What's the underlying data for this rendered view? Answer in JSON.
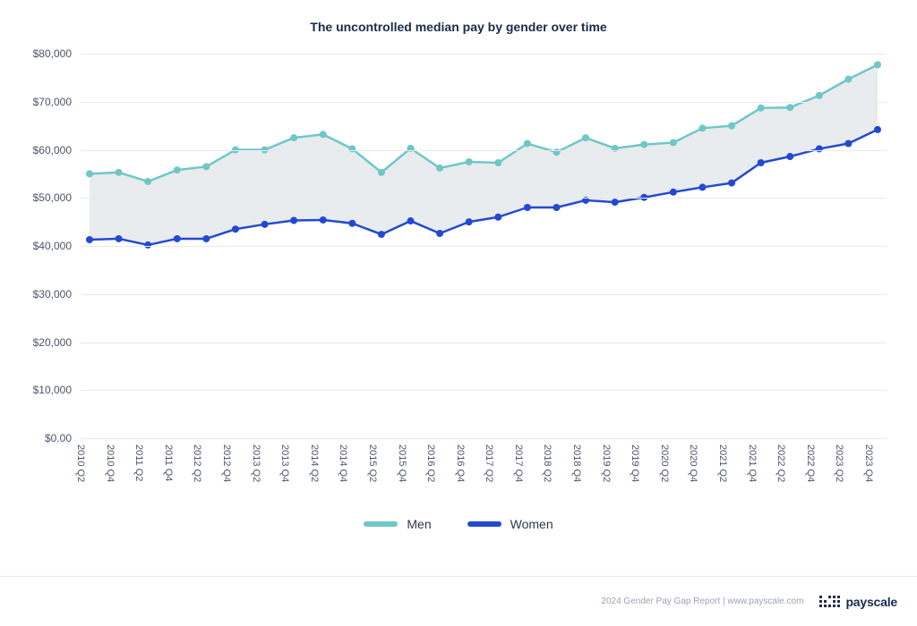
{
  "chart": {
    "type": "line-area",
    "title": "The uncontrolled median pay by gender over time",
    "title_fontsize": 14,
    "title_color": "#1a2b4a",
    "background_color": "#ffffff",
    "grid_color": "#e7e9ec",
    "area_fill": "#e8ecef",
    "area_opacity": 1,
    "ylim": [
      0,
      80000
    ],
    "ytick_step": 10000,
    "y_ticks": [
      {
        "v": 0,
        "label": "$0.00"
      },
      {
        "v": 10000,
        "label": "$10,000"
      },
      {
        "v": 20000,
        "label": "$20,000"
      },
      {
        "v": 30000,
        "label": "$30,000"
      },
      {
        "v": 40000,
        "label": "$40,000"
      },
      {
        "v": 50000,
        "label": "$50,000"
      },
      {
        "v": 60000,
        "label": "$60,000"
      },
      {
        "v": 70000,
        "label": "$70,000"
      },
      {
        "v": 80000,
        "label": "$80,000"
      }
    ],
    "y_label_color": "#4a5568",
    "y_label_fontsize": 12,
    "x_labels": [
      "2010 Q2",
      "2010 Q4",
      "2011 Q2",
      "2011 Q4",
      "2012 Q2",
      "2012 Q4",
      "2013 Q2",
      "2013 Q4",
      "2014 Q2",
      "2014 Q4",
      "2015 Q2",
      "2015 Q4",
      "2016 Q2",
      "2016 Q4",
      "2017 Q2",
      "2017 Q4",
      "2018 Q2",
      "2018 Q4",
      "2019 Q2",
      "2019 Q4",
      "2020 Q2",
      "2020 Q4",
      "2021 Q2",
      "2021 Q4",
      "2022 Q2",
      "2022 Q4",
      "2023 Q2",
      "2023 Q4"
    ],
    "x_label_color": "#4a5568",
    "x_label_fontsize": 11,
    "x_label_rotation": 90,
    "series": {
      "men": {
        "label": "Men",
        "color": "#6fc7c7",
        "line_width": 2.5,
        "marker": "circle",
        "marker_size": 4,
        "values": [
          55000,
          55300,
          53400,
          55800,
          56500,
          60000,
          60000,
          62500,
          63200,
          60200,
          55300,
          60300,
          56200,
          57500,
          57300,
          61300,
          59500,
          62500,
          60300,
          61100,
          61500,
          64500,
          65000,
          68700,
          68800,
          71300,
          74700,
          77700
        ]
      },
      "women": {
        "label": "Women",
        "color": "#2449d1",
        "line_width": 2.5,
        "marker": "circle",
        "marker_size": 4,
        "values": [
          41300,
          41500,
          40200,
          41500,
          41500,
          43500,
          44500,
          45300,
          45400,
          44700,
          42400,
          45200,
          42600,
          45000,
          46000,
          48000,
          48000,
          49500,
          49100,
          50100,
          51200,
          52200,
          53100,
          57300,
          58600,
          60200,
          61300,
          64200
        ]
      }
    },
    "legend": {
      "position": "bottom-center",
      "items": [
        "men",
        "women"
      ]
    }
  },
  "footer": {
    "text": "2024 Gender Pay Gap Report  |  www.payscale.com",
    "brand": "payscale",
    "text_color": "#9aa4b2",
    "brand_color": "#1a2b4a"
  }
}
